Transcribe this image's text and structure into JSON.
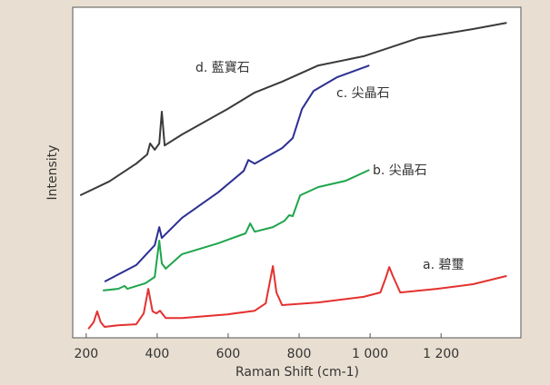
{
  "chart_data": {
    "type": "line",
    "x_label": "Raman Shift (cm-1)",
    "y_label": "Intensity",
    "xlim": [
      162,
      1425
    ],
    "ylim": [
      0,
      100
    ],
    "xticks": [
      200,
      400,
      600,
      800,
      {
        "value": 1000,
        "label": "1 000"
      },
      {
        "value": 1200,
        "label": "1 200"
      }
    ],
    "series": [
      {
        "name": "a. 碧璽",
        "color": "#e4312f",
        "x": [
          206,
          221,
          231,
          241,
          252,
          290,
          341,
          362,
          375,
          387,
          398,
          408,
          424,
          470,
          598,
          675,
          706,
          726,
          736,
          752,
          854,
          982,
          1029,
          1044,
          1054,
          1064,
          1085,
          1188,
          1290,
          1385
        ],
        "values": [
          2.7,
          4.7,
          8.0,
          4.7,
          3.3,
          3.8,
          4.1,
          7.4,
          14.8,
          8.0,
          7.4,
          8.2,
          6.0,
          6.0,
          7.1,
          8.2,
          10.4,
          21.7,
          13.7,
          9.9,
          10.7,
          12.4,
          13.7,
          18.1,
          21.4,
          18.7,
          13.7,
          14.8,
          16.2,
          18.7
        ]
      },
      {
        "name": "b. 尖晶石",
        "color": "#1ea54b",
        "x": [
          247,
          290,
          308,
          316,
          367,
          393,
          406,
          413,
          424,
          470,
          572,
          649,
          662,
          675,
          726,
          759,
          772,
          782,
          803,
          854,
          931,
          998
        ],
        "values": [
          14.3,
          14.8,
          15.7,
          14.8,
          16.5,
          18.4,
          29.4,
          22.5,
          20.9,
          25.3,
          28.6,
          31.6,
          34.6,
          32.1,
          33.5,
          35.4,
          37.1,
          36.8,
          43.1,
          45.6,
          47.5,
          50.8
        ]
      },
      {
        "name": "c. 尖晶石",
        "color": "#2b2f93",
        "x": [
          252,
          341,
          393,
          406,
          413,
          470,
          572,
          644,
          657,
          675,
          752,
          782,
          808,
          841,
          906,
          998
        ],
        "values": [
          17.0,
          22.0,
          28.0,
          33.5,
          30.2,
          36.3,
          44.0,
          50.5,
          53.8,
          52.7,
          57.4,
          60.4,
          69.2,
          74.7,
          78.8,
          82.4
        ]
      },
      {
        "name": "d. 藍寶石",
        "color": "#3a3a3a",
        "x": [
          183,
          265,
          341,
          372,
          380,
          393,
          406,
          413,
          421,
          470,
          598,
          675,
          752,
          854,
          982,
          1136,
          1290,
          1385
        ],
        "values": [
          43.1,
          47.3,
          52.7,
          55.5,
          58.8,
          56.9,
          58.8,
          68.4,
          58.2,
          61.5,
          69.2,
          74.2,
          77.5,
          82.4,
          85.2,
          90.7,
          93.4,
          95.3
        ]
      }
    ]
  }
}
